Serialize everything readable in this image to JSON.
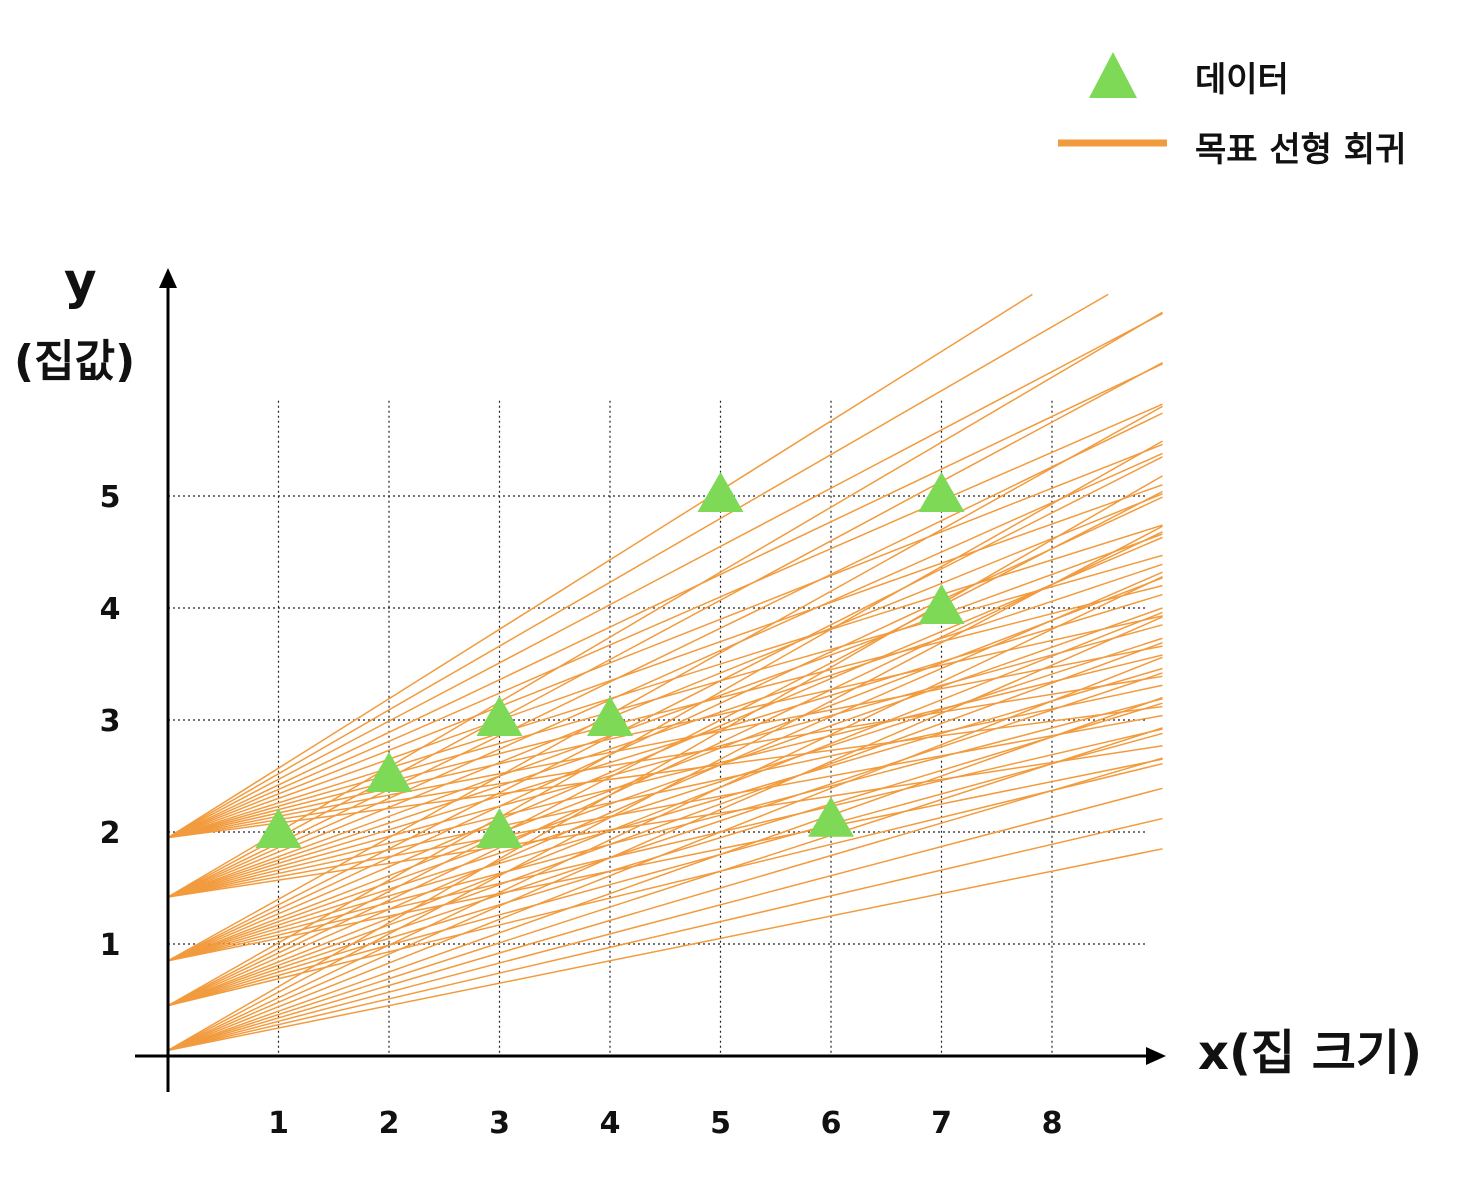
{
  "chart_data": {
    "type": "scatter",
    "title": "",
    "xlabel": "x(집 크기)",
    "ylabel_line1": "y",
    "ylabel_line2": "(집값)",
    "x_ticks": [
      "1",
      "2",
      "3",
      "4",
      "5",
      "6",
      "7",
      "8"
    ],
    "y_ticks": [
      "1",
      "2",
      "3",
      "4",
      "5"
    ],
    "xlim": [
      0,
      9
    ],
    "ylim": [
      0,
      7
    ],
    "grid": true,
    "legend_position": "top-right",
    "legend": [
      {
        "label": "데이터",
        "marker": "triangle",
        "color": "#7ED957"
      },
      {
        "label": "목표 선형 회귀",
        "marker": "line",
        "color": "#F29B3E"
      }
    ],
    "series": [
      {
        "name": "데이터",
        "marker": "triangle",
        "color": "#7ED957",
        "points": [
          {
            "x": 1,
            "y": 2.0
          },
          {
            "x": 2,
            "y": 2.5
          },
          {
            "x": 3,
            "y": 3.0
          },
          {
            "x": 3,
            "y": 2.0
          },
          {
            "x": 4,
            "y": 3.0
          },
          {
            "x": 5,
            "y": 5.0
          },
          {
            "x": 6,
            "y": 2.1
          },
          {
            "x": 7,
            "y": 5.0
          },
          {
            "x": 7,
            "y": 4.0
          }
        ]
      }
    ],
    "candidate_lines": {
      "name": "목표 선형 회귀",
      "color": "#F29B3E",
      "x_end": 9,
      "lines": [
        {
          "b": 1.95,
          "m": 0.62
        },
        {
          "b": 1.95,
          "m": 0.57
        },
        {
          "b": 1.95,
          "m": 0.52
        },
        {
          "b": 1.95,
          "m": 0.47
        },
        {
          "b": 1.95,
          "m": 0.43
        },
        {
          "b": 1.95,
          "m": 0.39
        },
        {
          "b": 1.95,
          "m": 0.35
        },
        {
          "b": 1.95,
          "m": 0.31
        },
        {
          "b": 1.95,
          "m": 0.28
        },
        {
          "b": 1.95,
          "m": 0.25
        },
        {
          "b": 1.95,
          "m": 0.22
        },
        {
          "b": 1.95,
          "m": 0.19
        },
        {
          "b": 1.95,
          "m": 0.16
        },
        {
          "b": 1.95,
          "m": 0.13
        },
        {
          "b": 1.42,
          "m": 0.58
        },
        {
          "b": 1.42,
          "m": 0.53
        },
        {
          "b": 1.42,
          "m": 0.48
        },
        {
          "b": 1.42,
          "m": 0.44
        },
        {
          "b": 1.42,
          "m": 0.4
        },
        {
          "b": 1.42,
          "m": 0.36
        },
        {
          "b": 1.42,
          "m": 0.33
        },
        {
          "b": 1.42,
          "m": 0.3
        },
        {
          "b": 1.42,
          "m": 0.27
        },
        {
          "b": 1.42,
          "m": 0.24
        },
        {
          "b": 1.42,
          "m": 0.21
        },
        {
          "b": 1.42,
          "m": 0.18
        },
        {
          "b": 1.42,
          "m": 0.15
        },
        {
          "b": 0.85,
          "m": 0.55
        },
        {
          "b": 0.85,
          "m": 0.5
        },
        {
          "b": 0.85,
          "m": 0.46
        },
        {
          "b": 0.85,
          "m": 0.42
        },
        {
          "b": 0.85,
          "m": 0.38
        },
        {
          "b": 0.85,
          "m": 0.35
        },
        {
          "b": 0.85,
          "m": 0.32
        },
        {
          "b": 0.85,
          "m": 0.29
        },
        {
          "b": 0.85,
          "m": 0.26
        },
        {
          "b": 0.85,
          "m": 0.23
        },
        {
          "b": 0.85,
          "m": 0.2
        },
        {
          "b": 0.45,
          "m": 0.56
        },
        {
          "b": 0.45,
          "m": 0.51
        },
        {
          "b": 0.45,
          "m": 0.47
        },
        {
          "b": 0.45,
          "m": 0.43
        },
        {
          "b": 0.45,
          "m": 0.39
        },
        {
          "b": 0.45,
          "m": 0.36
        },
        {
          "b": 0.45,
          "m": 0.33
        },
        {
          "b": 0.45,
          "m": 0.3
        },
        {
          "b": 0.45,
          "m": 0.27
        },
        {
          "b": 0.45,
          "m": 0.24
        },
        {
          "b": 0.05,
          "m": 0.57
        },
        {
          "b": 0.05,
          "m": 0.52
        },
        {
          "b": 0.05,
          "m": 0.47
        },
        {
          "b": 0.05,
          "m": 0.43
        },
        {
          "b": 0.05,
          "m": 0.39
        },
        {
          "b": 0.05,
          "m": 0.35
        },
        {
          "b": 0.05,
          "m": 0.32
        },
        {
          "b": 0.05,
          "m": 0.29
        },
        {
          "b": 0.05,
          "m": 0.26
        },
        {
          "b": 0.05,
          "m": 0.23
        },
        {
          "b": 0.05,
          "m": 0.2
        }
      ]
    }
  }
}
